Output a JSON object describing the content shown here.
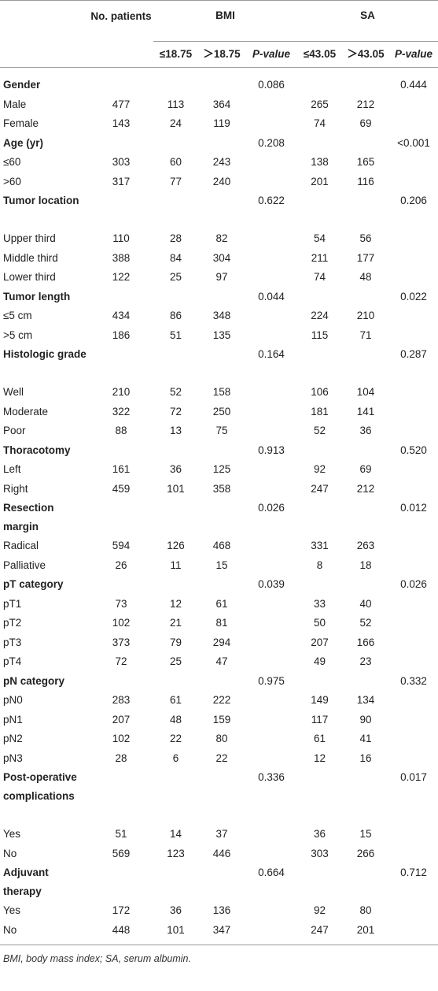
{
  "header": {
    "col_patients": "No. patients",
    "group_bmi": "BMI",
    "group_sa": "SA",
    "bmi_low": "≤18.75",
    "bmi_high": "＞18.75",
    "pvalue": "P-value",
    "sa_low": "≤43.05",
    "sa_high": "＞43.05"
  },
  "rows": [
    {
      "label": "Gender",
      "bold": true,
      "lines": 1,
      "n": "",
      "b1": "",
      "b2": "",
      "bp": "0.086",
      "s1": "",
      "s2": "",
      "sp": "0.444"
    },
    {
      "label": "Male",
      "n": "477",
      "b1": "113",
      "b2": "364",
      "bp": "",
      "s1": "265",
      "s2": "212",
      "sp": ""
    },
    {
      "label": "Female",
      "n": "143",
      "b1": "24",
      "b2": "119",
      "bp": "",
      "s1": "74",
      "s2": "69",
      "sp": ""
    },
    {
      "label": "Age (yr)",
      "bold": true,
      "lines": 1,
      "n": "",
      "b1": "",
      "b2": "",
      "bp": "0.208",
      "s1": "",
      "s2": "",
      "sp": "<0.001"
    },
    {
      "label": "≤60",
      "n": "303",
      "b1": "60",
      "b2": "243",
      "bp": "",
      "s1": "138",
      "s2": "165",
      "sp": ""
    },
    {
      "label": ">60",
      "n": "317",
      "b1": "77",
      "b2": "240",
      "bp": "",
      "s1": "201",
      "s2": "116",
      "sp": ""
    },
    {
      "label": "Tumor location",
      "bold": true,
      "lines": 2,
      "n": "",
      "b1": "",
      "b2": "",
      "bp": "0.622",
      "s1": "",
      "s2": "",
      "sp": "0.206"
    },
    {
      "label": "Upper third",
      "n": "110",
      "b1": "28",
      "b2": "82",
      "bp": "",
      "s1": "54",
      "s2": "56",
      "sp": ""
    },
    {
      "label": "Middle third",
      "n": "388",
      "b1": "84",
      "b2": "304",
      "bp": "",
      "s1": "211",
      "s2": "177",
      "sp": ""
    },
    {
      "label": "Lower third",
      "n": "122",
      "b1": "25",
      "b2": "97",
      "bp": "",
      "s1": "74",
      "s2": "48",
      "sp": ""
    },
    {
      "label": "Tumor length",
      "bold": true,
      "lines": 1,
      "n": "",
      "b1": "",
      "b2": "",
      "bp": "0.044",
      "s1": "",
      "s2": "",
      "sp": "0.022"
    },
    {
      "label": "≤5 cm",
      "n": "434",
      "b1": "86",
      "b2": "348",
      "bp": "",
      "s1": "224",
      "s2": "210",
      "sp": ""
    },
    {
      "label": ">5 cm",
      "n": "186",
      "b1": "51",
      "b2": "135",
      "bp": "",
      "s1": "115",
      "s2": "71",
      "sp": ""
    },
    {
      "label": "Histologic grade",
      "bold": true,
      "lines": 2,
      "n": "",
      "b1": "",
      "b2": "",
      "bp": "0.164",
      "s1": "",
      "s2": "",
      "sp": "0.287"
    },
    {
      "label": "Well",
      "n": "210",
      "b1": "52",
      "b2": "158",
      "bp": "",
      "s1": "106",
      "s2": "104",
      "sp": ""
    },
    {
      "label": "Moderate",
      "n": "322",
      "b1": "72",
      "b2": "250",
      "bp": "",
      "s1": "181",
      "s2": "141",
      "sp": ""
    },
    {
      "label": "Poor",
      "n": "88",
      "b1": "13",
      "b2": "75",
      "bp": "",
      "s1": "52",
      "s2": "36",
      "sp": ""
    },
    {
      "label": "Thoracotomy",
      "bold": true,
      "lines": 1,
      "n": "",
      "b1": "",
      "b2": "",
      "bp": "0.913",
      "s1": "",
      "s2": "",
      "sp": "0.520"
    },
    {
      "label": "Left",
      "n": "161",
      "b1": "36",
      "b2": "125",
      "bp": "",
      "s1": "92",
      "s2": "69",
      "sp": ""
    },
    {
      "label": "Right",
      "n": "459",
      "b1": "101",
      "b2": "358",
      "bp": "",
      "s1": "247",
      "s2": "212",
      "sp": ""
    },
    {
      "label": "Resection margin",
      "bold": true,
      "lines": 2,
      "n": "",
      "b1": "",
      "b2": "",
      "bp": "0.026",
      "s1": "",
      "s2": "",
      "sp": "0.012"
    },
    {
      "label": "Radical",
      "n": "594",
      "b1": "126",
      "b2": "468",
      "bp": "",
      "s1": "331",
      "s2": "263",
      "sp": ""
    },
    {
      "label": "Palliative",
      "n": "26",
      "b1": "11",
      "b2": "15",
      "bp": "",
      "s1": "8",
      "s2": "18",
      "sp": ""
    },
    {
      "label": "pT category",
      "bold": true,
      "lines": 1,
      "n": "",
      "b1": "",
      "b2": "",
      "bp": "0.039",
      "s1": "",
      "s2": "",
      "sp": "0.026"
    },
    {
      "label": "pT1",
      "n": "73",
      "b1": "12",
      "b2": "61",
      "bp": "",
      "s1": "33",
      "s2": "40",
      "sp": ""
    },
    {
      "label": "pT2",
      "n": "102",
      "b1": "21",
      "b2": "81",
      "bp": "",
      "s1": "50",
      "s2": "52",
      "sp": ""
    },
    {
      "label": "pT3",
      "n": "373",
      "b1": "79",
      "b2": "294",
      "bp": "",
      "s1": "207",
      "s2": "166",
      "sp": ""
    },
    {
      "label": "pT4",
      "n": "72",
      "b1": "25",
      "b2": "47",
      "bp": "",
      "s1": "49",
      "s2": "23",
      "sp": ""
    },
    {
      "label": "pN category",
      "bold": true,
      "lines": 1,
      "n": "",
      "b1": "",
      "b2": "",
      "bp": "0.975",
      "s1": "",
      "s2": "",
      "sp": "0.332"
    },
    {
      "label": "pN0",
      "n": "283",
      "b1": "61",
      "b2": "222",
      "bp": "",
      "s1": "149",
      "s2": "134",
      "sp": ""
    },
    {
      "label": "pN1",
      "n": "207",
      "b1": "48",
      "b2": "159",
      "bp": "",
      "s1": "117",
      "s2": "90",
      "sp": ""
    },
    {
      "label": "pN2",
      "n": "102",
      "b1": "22",
      "b2": "80",
      "bp": "",
      "s1": "61",
      "s2": "41",
      "sp": ""
    },
    {
      "label": "pN3",
      "n": "28",
      "b1": "6",
      "b2": "22",
      "bp": "",
      "s1": "12",
      "s2": "16",
      "sp": ""
    },
    {
      "label": "Post-operative complications",
      "bold": true,
      "lines": 3,
      "n": "",
      "b1": "",
      "b2": "",
      "bp": "0.336",
      "s1": "",
      "s2": "",
      "sp": "0.017"
    },
    {
      "label": "Yes",
      "n": "51",
      "b1": "14",
      "b2": "37",
      "bp": "",
      "s1": "36",
      "s2": "15",
      "sp": ""
    },
    {
      "label": "No",
      "n": "569",
      "b1": "123",
      "b2": "446",
      "bp": "",
      "s1": "303",
      "s2": "266",
      "sp": ""
    },
    {
      "label": "Adjuvant therapy",
      "bold": true,
      "lines": 2,
      "n": "",
      "b1": "",
      "b2": "",
      "bp": "0.664",
      "s1": "",
      "s2": "",
      "sp": "0.712"
    },
    {
      "label": "Yes",
      "n": "172",
      "b1": "36",
      "b2": "136",
      "bp": "",
      "s1": "92",
      "s2": "80",
      "sp": ""
    },
    {
      "label": "No",
      "n": "448",
      "b1": "101",
      "b2": "347",
      "bp": "",
      "s1": "247",
      "s2": "201",
      "sp": ""
    }
  ],
  "footnote": "BMI, body mass index; SA, serum albumin."
}
